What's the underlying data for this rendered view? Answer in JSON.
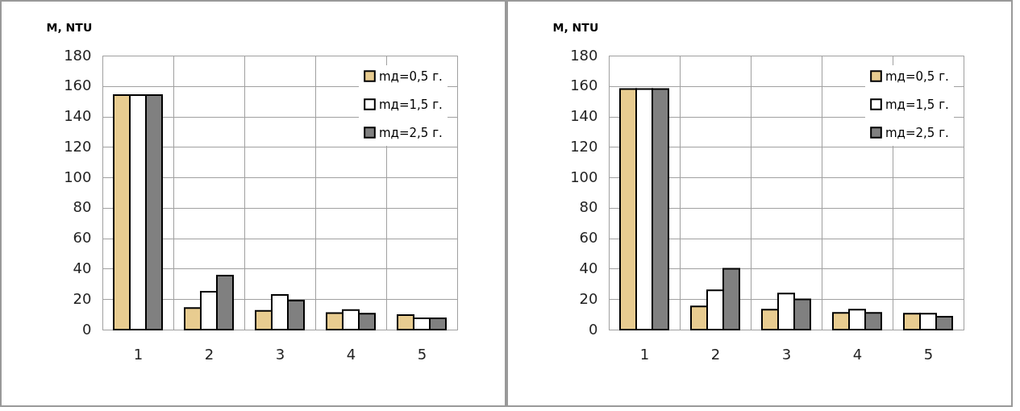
{
  "chart_data": [
    {
      "type": "bar",
      "ylabel": "M, NTU",
      "categories": [
        "1",
        "2",
        "3",
        "4",
        "5"
      ],
      "ylim": [
        0,
        180
      ],
      "yticks": [
        0,
        20,
        40,
        60,
        80,
        100,
        120,
        140,
        160,
        180
      ],
      "grid": true,
      "legend": "top right",
      "series": [
        {
          "name": "mд=0,5 г.",
          "color": "#e8cc90",
          "values": [
            154,
            14.2,
            12.3,
            10.8,
            9.5
          ]
        },
        {
          "name": "mд=1,5 г.",
          "color": "#ffffff",
          "values": [
            154,
            24.9,
            22.8,
            12.9,
            7.4
          ]
        },
        {
          "name": "mд=2,5 г.",
          "color": "#808080",
          "values": [
            154,
            35.5,
            19,
            10.4,
            7.4
          ]
        }
      ]
    },
    {
      "type": "bar",
      "ylabel": "M, NTU",
      "categories": [
        "1",
        "2",
        "3",
        "4",
        "5"
      ],
      "ylim": [
        0,
        180
      ],
      "yticks": [
        0,
        20,
        40,
        60,
        80,
        100,
        120,
        140,
        160,
        180
      ],
      "grid": true,
      "legend": "top right",
      "series": [
        {
          "name": "mд=0,5 г.",
          "color": "#e8cc90",
          "values": [
            158,
            15.2,
            13.1,
            11,
            10.4
          ]
        },
        {
          "name": "mд=1,5 г.",
          "color": "#ffffff",
          "values": [
            158,
            25.8,
            23.7,
            13.1,
            10.4
          ]
        },
        {
          "name": "mд=2,5 г.",
          "color": "#808080",
          "values": [
            158,
            40,
            19.8,
            11,
            8.5
          ]
        }
      ]
    }
  ]
}
